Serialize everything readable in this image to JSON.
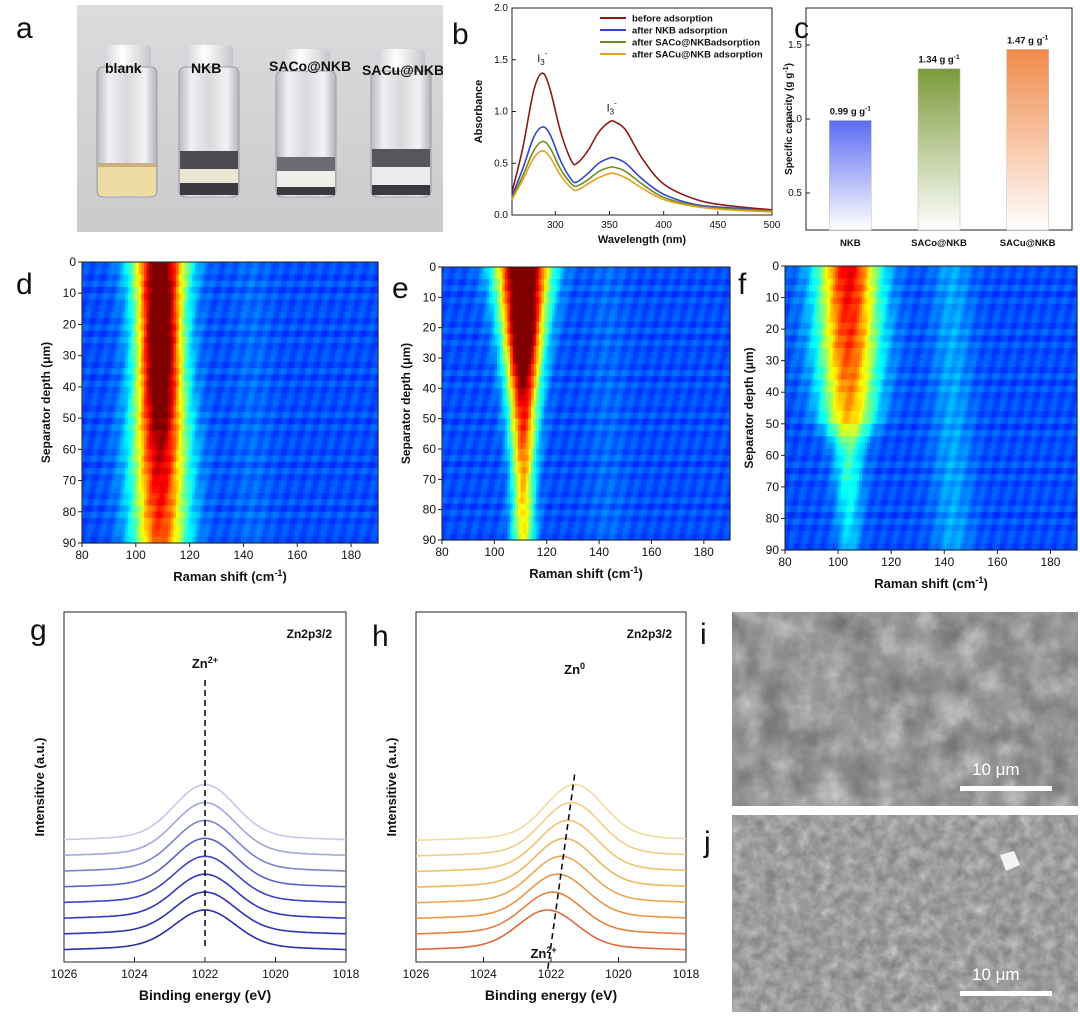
{
  "panel_letters": [
    "a",
    "b",
    "c",
    "d",
    "e",
    "f",
    "g",
    "h",
    "i",
    "j"
  ],
  "photo_a": {
    "vial_labels": [
      "blank",
      "NKB",
      "SACo@NKB",
      "SACu@NKB"
    ],
    "colors": {
      "background": "#d4d4d6",
      "blank_liquid": "#ecdca4",
      "dark_band": "#3a3a3e"
    }
  },
  "sem": {
    "i_scale_bar": "10 μm",
    "j_scale_bar": "10 μm"
  },
  "chart_data": [
    {
      "panel": "b",
      "type": "line",
      "xlabel": "Wavelength (nm)",
      "ylabel": "Absorbance",
      "xlim": [
        260,
        500
      ],
      "ylim": [
        0,
        2.0
      ],
      "xticks": [
        300,
        350,
        400,
        450,
        500
      ],
      "yticks": [
        0.0,
        0.5,
        1.0,
        1.5,
        2.0
      ],
      "x": [
        260,
        270,
        280,
        288,
        295,
        305,
        315,
        320,
        330,
        340,
        350,
        355,
        365,
        380,
        400,
        430,
        460,
        500
      ],
      "series": [
        {
          "name": "before adsorption",
          "color": "#8b1a1a",
          "values": [
            0.22,
            0.65,
            1.2,
            1.37,
            1.22,
            0.8,
            0.52,
            0.5,
            0.62,
            0.8,
            0.9,
            0.9,
            0.82,
            0.55,
            0.3,
            0.15,
            0.09,
            0.05
          ]
        },
        {
          "name": "after NKB adsorption",
          "color": "#3344cc",
          "values": [
            0.18,
            0.45,
            0.75,
            0.85,
            0.78,
            0.52,
            0.34,
            0.32,
            0.4,
            0.5,
            0.55,
            0.55,
            0.5,
            0.35,
            0.2,
            0.1,
            0.07,
            0.04
          ]
        },
        {
          "name": "after SACo@NKBadsorption",
          "color": "#6b8e23",
          "values": [
            0.16,
            0.38,
            0.62,
            0.71,
            0.65,
            0.44,
            0.3,
            0.28,
            0.34,
            0.42,
            0.46,
            0.46,
            0.42,
            0.3,
            0.17,
            0.09,
            0.06,
            0.04
          ]
        },
        {
          "name": "after SACu@NKB adsorption",
          "color": "#e6a020",
          "values": [
            0.15,
            0.34,
            0.55,
            0.62,
            0.56,
            0.38,
            0.26,
            0.24,
            0.3,
            0.36,
            0.4,
            0.4,
            0.36,
            0.26,
            0.15,
            0.08,
            0.05,
            0.03
          ]
        }
      ],
      "annotations": [
        {
          "text": "I",
          "sub": "3",
          "sup": "-",
          "x": 288,
          "y": 1.48
        },
        {
          "text": "I",
          "sub": "3",
          "sup": "-",
          "x": 352,
          "y": 1.0
        }
      ],
      "legend": "top-right"
    },
    {
      "panel": "c",
      "type": "bar",
      "categories": [
        "NKB",
        "SACo@NKB",
        "SACu@NKB"
      ],
      "values": [
        0.99,
        1.34,
        1.47
      ],
      "data_labels": [
        "0.99 g g",
        "1.34 g g",
        "1.47 g g"
      ],
      "data_label_sup": "-1",
      "colors": [
        "#5b6cf0",
        "#7c9a3a",
        "#f08a4a"
      ],
      "ylabel": "Specific capacity (g g",
      "ylabel_sup": "-1",
      "ylabel_end": ")",
      "ylim": [
        0.25,
        1.75
      ],
      "yticks": [
        0.5,
        1.0,
        1.5
      ]
    },
    {
      "panel": "d",
      "type": "heatmap",
      "xlabel": "Raman shift (cm",
      "xlabel_sup": "-1",
      "xlabel_end": ")",
      "ylabel": "Separator depth (μm)",
      "xlim": [
        80,
        190
      ],
      "ylim": [
        0,
        90
      ],
      "xticks": [
        80,
        100,
        120,
        140,
        160,
        180
      ],
      "yticks": [
        0,
        10,
        20,
        30,
        40,
        50,
        60,
        70,
        80,
        90
      ],
      "peak_center": 109,
      "intensity_profile": [
        {
          "depth": 0,
          "max": 0.85,
          "width": 7
        },
        {
          "depth": 15,
          "max": 0.95,
          "width": 6
        },
        {
          "depth": 35,
          "max": 0.95,
          "width": 6
        },
        {
          "depth": 60,
          "max": 0.75,
          "width": 7
        },
        {
          "depth": 90,
          "max": 0.6,
          "width": 7
        }
      ]
    },
    {
      "panel": "e",
      "type": "heatmap",
      "xlabel": "Raman shift (cm",
      "xlabel_sup": "-1",
      "xlabel_end": ")",
      "ylabel": "Separator depth (μm)",
      "xlim": [
        80,
        190
      ],
      "ylim": [
        0,
        90
      ],
      "xticks": [
        80,
        100,
        120,
        140,
        160,
        180
      ],
      "yticks": [
        0,
        10,
        20,
        30,
        40,
        50,
        60,
        70,
        80,
        90
      ],
      "peak_center": 111,
      "intensity_profile": [
        {
          "depth": 0,
          "max": 1.0,
          "width": 7
        },
        {
          "depth": 25,
          "max": 1.0,
          "width": 5
        },
        {
          "depth": 45,
          "max": 0.7,
          "width": 4
        },
        {
          "depth": 70,
          "max": 0.5,
          "width": 3
        },
        {
          "depth": 90,
          "max": 0.42,
          "width": 3
        }
      ]
    },
    {
      "panel": "f",
      "type": "heatmap",
      "xlabel": "Raman shift (cm",
      "xlabel_sup": "-1",
      "xlabel_end": ")",
      "ylabel": "Separator depth (μm)",
      "xlim": [
        80,
        190
      ],
      "ylim": [
        0,
        90
      ],
      "xticks": [
        80,
        100,
        120,
        140,
        160,
        180
      ],
      "yticks": [
        0,
        10,
        20,
        30,
        40,
        50,
        60,
        70,
        80,
        90
      ],
      "peak_center": 104,
      "intensity_profile": [
        {
          "depth": 0,
          "max": 0.7,
          "width": 8
        },
        {
          "depth": 25,
          "max": 0.62,
          "width": 8
        },
        {
          "depth": 48,
          "max": 0.5,
          "width": 7
        },
        {
          "depth": 58,
          "max": 0.25,
          "width": 4
        },
        {
          "depth": 90,
          "max": 0.12,
          "width": 3
        }
      ]
    },
    {
      "panel": "g",
      "type": "line",
      "title": "Zn2p3/2",
      "xlabel": "Binding energy (eV)",
      "ylabel": "Intensitive (a.u.)",
      "xlim": [
        1026,
        1018
      ],
      "xticks": [
        1026,
        1024,
        1022,
        1020,
        1018
      ],
      "annotation": {
        "text": "Zn",
        "sup": "2+",
        "x": 1022
      },
      "peak_centers": [
        1022,
        1022,
        1022,
        1022,
        1022,
        1022,
        1022,
        1022
      ],
      "colors": [
        "#2a2fa8",
        "#2e33b0",
        "#3438b8",
        "#3d42c0",
        "#5a60c8",
        "#7d82d2",
        "#a2a6de",
        "#c6c8ea"
      ]
    },
    {
      "panel": "h",
      "type": "line",
      "title": "Zn2p3/2",
      "xlabel": "Binding energy (eV)",
      "ylabel": "Intensitive (a.u.)",
      "xlim": [
        1026,
        1018
      ],
      "xticks": [
        1026,
        1024,
        1022,
        1020,
        1018
      ],
      "annotation_top": {
        "text": "Zn",
        "sup": "0",
        "x": 1021.3
      },
      "annotation_bottom": {
        "text": "Zn",
        "sup": "2+",
        "x": 1022.1
      },
      "peak_centers": [
        1022.1,
        1021.95,
        1021.8,
        1021.7,
        1021.6,
        1021.5,
        1021.4,
        1021.3
      ],
      "colors": [
        "#e0683a",
        "#e6803e",
        "#ea9445",
        "#eda650",
        "#efb65e",
        "#f0c36e",
        "#f0cf85",
        "#f0dba0"
      ]
    }
  ]
}
